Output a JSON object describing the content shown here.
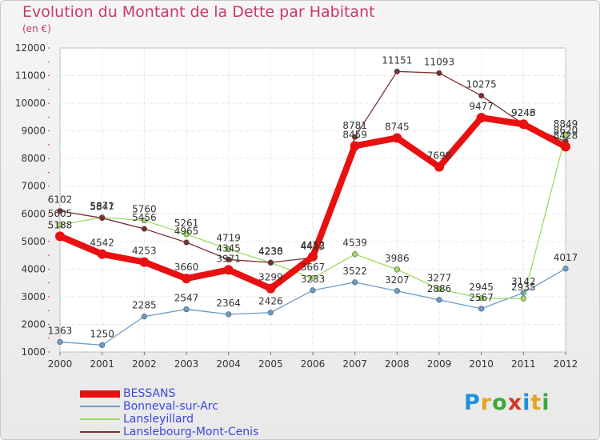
{
  "title": "Evolution du Montant de la Dette par Habitant",
  "unit": "(en €)",
  "logo": {
    "text": "Proxiti",
    "colors": [
      "#1e90d8",
      "#e8a21c",
      "#3ea83a",
      "#d0392b",
      "#1e90d8",
      "#e8a21c",
      "#3ea83a"
    ]
  },
  "chart_data": {
    "type": "line",
    "x": [
      "2000",
      "2001",
      "2002",
      "2003",
      "2004",
      "2005",
      "2006",
      "2007",
      "2008",
      "2009",
      "2010",
      "2011",
      "2012"
    ],
    "ylim": [
      1000,
      12000
    ],
    "yticks": [
      1000,
      2000,
      3000,
      4000,
      5000,
      6000,
      7000,
      8000,
      9000,
      10000,
      11000,
      12000
    ],
    "grid": "horizontal",
    "legend_position": "bottom-left",
    "series": [
      {
        "name": "BESSANS",
        "color": "#e81010",
        "values": [
          5188,
          4542,
          4253,
          3660,
          3971,
          3299,
          4452,
          8459,
          8745,
          7698,
          9477,
          9243,
          8428
        ]
      },
      {
        "name": "Bonneval-sur-Arc",
        "color": "#6a9bc9",
        "values": [
          1363,
          1250,
          2285,
          2547,
          2364,
          2426,
          3233,
          3522,
          3207,
          2886,
          2567,
          3142,
          4017
        ]
      },
      {
        "name": "Lansleyillard",
        "color": "#9cdc63",
        "values": [
          5605,
          5871,
          5760,
          5261,
          4719,
          4230,
          3667,
          4539,
          3986,
          3277,
          2945,
          2935,
          8849
        ]
      },
      {
        "name": "Lanslebourg-Mont-Cenis",
        "color": "#7a3030",
        "values": [
          6102,
          5847,
          5456,
          4965,
          4345,
          4238,
          4413,
          8781,
          11151,
          11093,
          10275,
          9246,
          8620
        ]
      }
    ]
  }
}
